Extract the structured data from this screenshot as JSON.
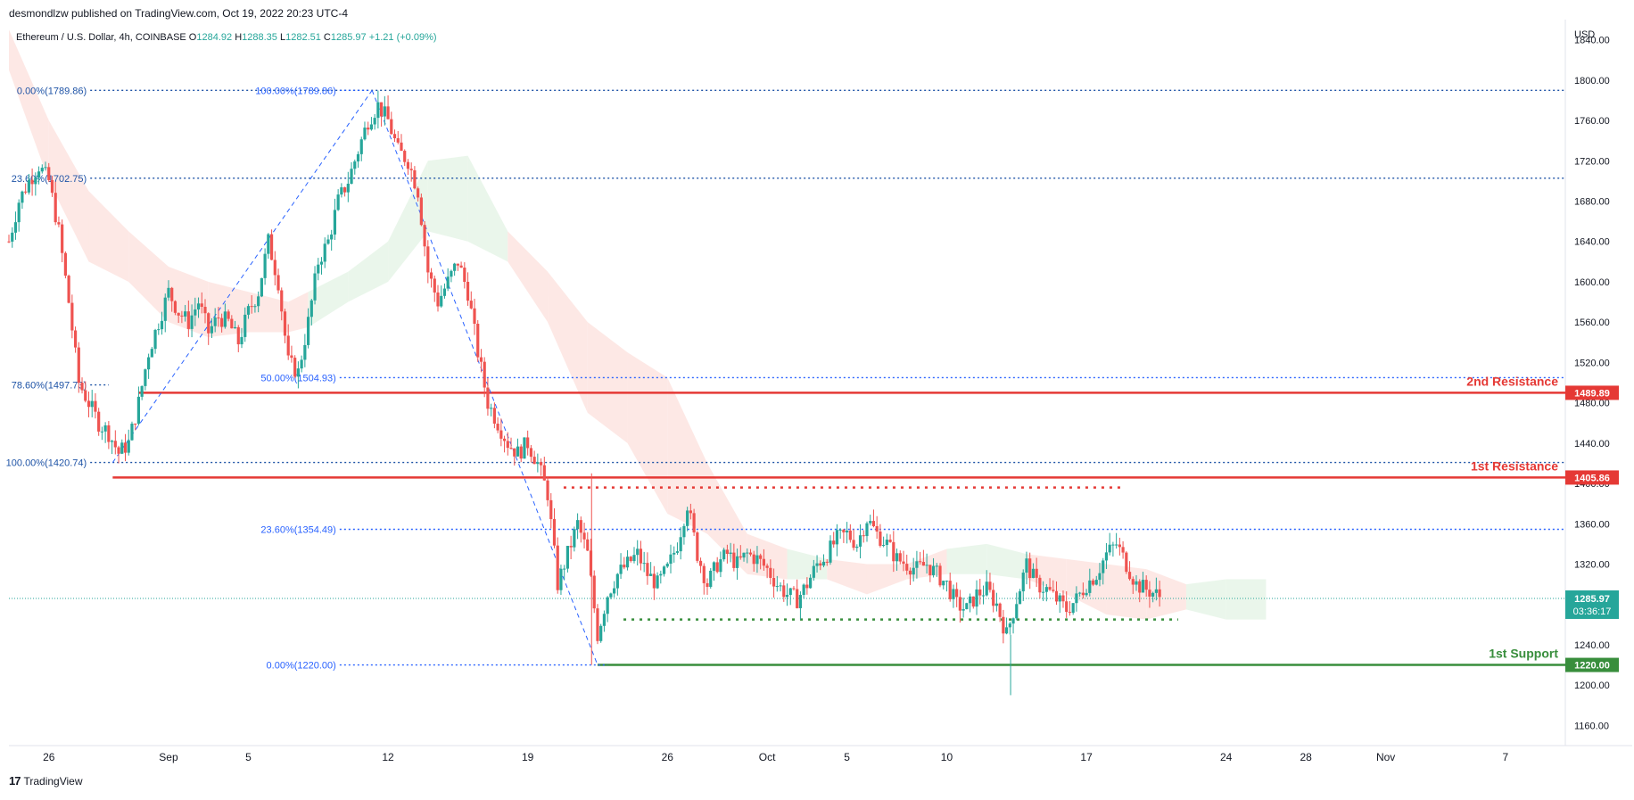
{
  "header": {
    "publisher": "desmondlzw published on TradingView.com, Oct 19, 2022 20:23 UTC-4"
  },
  "footer": {
    "brand": "TradingView"
  },
  "colors": {
    "bull": "#26a69a",
    "bear": "#ef5350",
    "fib": "#1e53a6",
    "resistance": "#e53935",
    "support": "#388e3c",
    "cloud_red": "#fde4e1",
    "cloud_green": "#e6f4e8"
  },
  "chart_data": {
    "type": "candlestick",
    "symbol_line": {
      "name": "Ethereum / U.S. Dollar, 4h, COINBASE",
      "open_label": "O",
      "open": "1284.92",
      "high_label": "H",
      "high": "1288.35",
      "low_label": "L",
      "low": "1282.51",
      "close_label": "C",
      "close": "1285.97",
      "change": "+1.21 (+0.09%)"
    },
    "currency": "USD",
    "x_ticks": [
      {
        "label": "26",
        "day": 0
      },
      {
        "label": "Sep",
        "day": 6
      },
      {
        "label": "5",
        "day": 10
      },
      {
        "label": "12",
        "day": 17
      },
      {
        "label": "19",
        "day": 24
      },
      {
        "label": "26",
        "day": 31
      },
      {
        "label": "Oct",
        "day": 36
      },
      {
        "label": "5",
        "day": 40
      },
      {
        "label": "10",
        "day": 45
      },
      {
        "label": "17",
        "day": 52
      },
      {
        "label": "24",
        "day": 59
      },
      {
        "label": "28",
        "day": 63
      },
      {
        "label": "Nov",
        "day": 67
      },
      {
        "label": "7",
        "day": 73
      }
    ],
    "y_ticks": [
      1160,
      1200,
      1240,
      1280,
      1320,
      1360,
      1400,
      1440,
      1480,
      1520,
      1560,
      1600,
      1640,
      1680,
      1720,
      1760,
      1800,
      1840
    ],
    "y_range": [
      1140,
      1860
    ],
    "x_range_days": [
      -2,
      76
    ],
    "fib_levels": [
      {
        "label": "0.00%(1789.86)",
        "price": 1789.86,
        "from_day": -1.5,
        "to_day": 76
      },
      {
        "label": "23.60%(1702.75)",
        "price": 1702.75,
        "from_day": -1.5,
        "to_day": 76
      },
      {
        "label": "78.60%(1497.73)",
        "price": 1497.73,
        "from_day": -1.5,
        "to_day": 3
      },
      {
        "label": "100.00%(1420.74)",
        "price": 1420.74,
        "from_day": -1.5,
        "to_day": 76
      },
      {
        "label": "100.00%(1789.86)",
        "price": 1789.86,
        "from_day": 11,
        "to_day": 16
      },
      {
        "label": "50.00%(1504.93)",
        "price": 1504.93,
        "from_day": 11,
        "to_day": 76
      },
      {
        "label": "23.60%(1354.49)",
        "price": 1354.49,
        "from_day": 11,
        "to_day": 76
      },
      {
        "label": "0.00%(1220.00)",
        "price": 1220.0,
        "from_day": 11,
        "to_day": 28
      }
    ],
    "fib_swings": [
      {
        "from": {
          "day": 3.2,
          "price": 1420.74
        },
        "to": {
          "day": 16.2,
          "price": 1789.86
        }
      },
      {
        "from": {
          "day": 16.2,
          "price": 1789.86
        },
        "to": {
          "day": 27.5,
          "price": 1220.0
        }
      }
    ],
    "levels": [
      {
        "name": "2nd Resistance",
        "price": 1489.89,
        "price_label": "1489.89",
        "from_day": 4.5,
        "kind": "resistance"
      },
      {
        "name": "1st Resistance",
        "price": 1405.86,
        "price_label": "1405.86",
        "from_day": 3.2,
        "kind": "resistance"
      },
      {
        "name": "1st Support",
        "price": 1220.0,
        "price_label": "1220.00",
        "from_day": 27.5,
        "kind": "support"
      }
    ],
    "dotted_levels": [
      {
        "price": 1396.0,
        "from_day": 25.8,
        "to_day": 53.8,
        "kind": "resistance"
      },
      {
        "price": 1265.0,
        "from_day": 28.8,
        "to_day": 56.6,
        "kind": "support"
      }
    ],
    "last_price": {
      "price": 1285.97,
      "label": "1285.97",
      "countdown": "03:36:17"
    },
    "ichimoku_cloud": [
      {
        "day": -2,
        "top": 1850,
        "bottom": 1810,
        "bull": false
      },
      {
        "day": 0,
        "top": 1760,
        "bottom": 1700,
        "bull": false
      },
      {
        "day": 2,
        "top": 1690,
        "bottom": 1620,
        "bull": false
      },
      {
        "day": 4,
        "top": 1650,
        "bottom": 1600,
        "bull": false
      },
      {
        "day": 6,
        "top": 1615,
        "bottom": 1560,
        "bull": false
      },
      {
        "day": 8,
        "top": 1600,
        "bottom": 1545,
        "bull": false
      },
      {
        "day": 10,
        "top": 1590,
        "bottom": 1550,
        "bull": false
      },
      {
        "day": 12,
        "top": 1580,
        "bottom": 1550,
        "bull": false
      },
      {
        "day": 13,
        "top": 1590,
        "bottom": 1555,
        "bull": true
      },
      {
        "day": 15,
        "top": 1610,
        "bottom": 1580,
        "bull": true
      },
      {
        "day": 17,
        "top": 1640,
        "bottom": 1600,
        "bull": true
      },
      {
        "day": 19,
        "top": 1720,
        "bottom": 1650,
        "bull": true
      },
      {
        "day": 21,
        "top": 1725,
        "bottom": 1640,
        "bull": true
      },
      {
        "day": 23,
        "top": 1650,
        "bottom": 1620,
        "bull": false
      },
      {
        "day": 25,
        "top": 1610,
        "bottom": 1560,
        "bull": false
      },
      {
        "day": 27,
        "top": 1560,
        "bottom": 1470,
        "bull": false
      },
      {
        "day": 29,
        "top": 1530,
        "bottom": 1440,
        "bull": false
      },
      {
        "day": 31,
        "top": 1505,
        "bottom": 1370,
        "bull": false
      },
      {
        "day": 33,
        "top": 1420,
        "bottom": 1350,
        "bull": false
      },
      {
        "day": 35,
        "top": 1350,
        "bottom": 1310,
        "bull": false
      },
      {
        "day": 37,
        "top": 1335,
        "bottom": 1305,
        "bull": true
      },
      {
        "day": 39,
        "top": 1325,
        "bottom": 1305,
        "bull": false
      },
      {
        "day": 41,
        "top": 1320,
        "bottom": 1290,
        "bull": false
      },
      {
        "day": 43,
        "top": 1320,
        "bottom": 1305,
        "bull": false
      },
      {
        "day": 45,
        "top": 1335,
        "bottom": 1310,
        "bull": true
      },
      {
        "day": 47,
        "top": 1340,
        "bottom": 1310,
        "bull": true
      },
      {
        "day": 49,
        "top": 1330,
        "bottom": 1305,
        "bull": false
      },
      {
        "day": 51,
        "top": 1325,
        "bottom": 1290,
        "bull": false
      },
      {
        "day": 53,
        "top": 1320,
        "bottom": 1270,
        "bull": false
      },
      {
        "day": 55,
        "top": 1315,
        "bottom": 1265,
        "bull": false
      },
      {
        "day": 57,
        "top": 1300,
        "bottom": 1275,
        "bull": true
      },
      {
        "day": 59,
        "top": 1305,
        "bottom": 1265,
        "bull": true
      },
      {
        "day": 61,
        "top": 1305,
        "bottom": 1265,
        "bull": true
      }
    ],
    "price_path": [
      [
        -2,
        1640
      ],
      [
        -1.5,
        1680
      ],
      [
        -1,
        1700
      ],
      [
        -0.5,
        1715
      ],
      [
        0,
        1700
      ],
      [
        0.5,
        1650
      ],
      [
        1,
        1580
      ],
      [
        1.5,
        1500
      ],
      [
        2,
        1480
      ],
      [
        2.5,
        1460
      ],
      [
        3,
        1450
      ],
      [
        3.5,
        1430
      ],
      [
        4,
        1440
      ],
      [
        4.5,
        1480
      ],
      [
        5,
        1530
      ],
      [
        5.5,
        1560
      ],
      [
        6,
        1590
      ],
      [
        6.5,
        1570
      ],
      [
        7,
        1560
      ],
      [
        7.5,
        1580
      ],
      [
        8,
        1550
      ],
      [
        8.5,
        1565
      ],
      [
        9,
        1560
      ],
      [
        9.5,
        1540
      ],
      [
        10,
        1570
      ],
      [
        10.5,
        1590
      ],
      [
        11,
        1640
      ],
      [
        11.5,
        1600
      ],
      [
        12,
        1520
      ],
      [
        12.5,
        1510
      ],
      [
        13,
        1560
      ],
      [
        13.5,
        1620
      ],
      [
        14,
        1640
      ],
      [
        14.5,
        1680
      ],
      [
        15,
        1700
      ],
      [
        15.5,
        1730
      ],
      [
        16,
        1760
      ],
      [
        16.5,
        1775
      ],
      [
        17,
        1760
      ],
      [
        17.5,
        1730
      ],
      [
        18,
        1720
      ],
      [
        18.5,
        1690
      ],
      [
        19,
        1610
      ],
      [
        19.5,
        1580
      ],
      [
        20,
        1600
      ],
      [
        20.5,
        1620
      ],
      [
        21,
        1590
      ],
      [
        21.5,
        1530
      ],
      [
        22,
        1480
      ],
      [
        22.5,
        1460
      ],
      [
        23,
        1440
      ],
      [
        23.5,
        1430
      ],
      [
        24,
        1440
      ],
      [
        24.5,
        1420
      ],
      [
        25,
        1390
      ],
      [
        25.5,
        1300
      ],
      [
        26,
        1330
      ],
      [
        26.5,
        1360
      ],
      [
        27,
        1330
      ],
      [
        27.5,
        1250
      ],
      [
        28,
        1290
      ],
      [
        28.5,
        1310
      ],
      [
        29,
        1320
      ],
      [
        29.5,
        1330
      ],
      [
        30,
        1310
      ],
      [
        30.5,
        1300
      ],
      [
        31,
        1315
      ],
      [
        31.5,
        1340
      ],
      [
        32,
        1380
      ],
      [
        32.5,
        1330
      ],
      [
        33,
        1300
      ],
      [
        33.5,
        1320
      ],
      [
        34,
        1330
      ],
      [
        34.5,
        1320
      ],
      [
        35,
        1330
      ],
      [
        35.5,
        1325
      ],
      [
        36,
        1315
      ],
      [
        36.5,
        1300
      ],
      [
        37,
        1290
      ],
      [
        37.5,
        1285
      ],
      [
        38,
        1300
      ],
      [
        38.5,
        1320
      ],
      [
        39,
        1330
      ],
      [
        39.5,
        1345
      ],
      [
        40,
        1350
      ],
      [
        40.5,
        1340
      ],
      [
        41,
        1365
      ],
      [
        41.5,
        1350
      ],
      [
        42,
        1340
      ],
      [
        42.5,
        1325
      ],
      [
        43,
        1320
      ],
      [
        43.5,
        1315
      ],
      [
        44,
        1320
      ],
      [
        44.5,
        1310
      ],
      [
        45,
        1300
      ],
      [
        45.5,
        1280
      ],
      [
        46,
        1275
      ],
      [
        46.5,
        1290
      ],
      [
        47,
        1295
      ],
      [
        47.5,
        1280
      ],
      [
        48,
        1250
      ],
      [
        48.5,
        1285
      ],
      [
        49,
        1320
      ],
      [
        49.5,
        1300
      ],
      [
        50,
        1295
      ],
      [
        50.5,
        1285
      ],
      [
        51,
        1275
      ],
      [
        51.5,
        1285
      ],
      [
        52,
        1300
      ],
      [
        52.5,
        1310
      ],
      [
        53,
        1330
      ],
      [
        53.5,
        1340
      ],
      [
        54,
        1320
      ],
      [
        54.5,
        1300
      ],
      [
        55,
        1295
      ],
      [
        55.5,
        1290
      ],
      [
        55.8,
        1285.97
      ]
    ]
  }
}
